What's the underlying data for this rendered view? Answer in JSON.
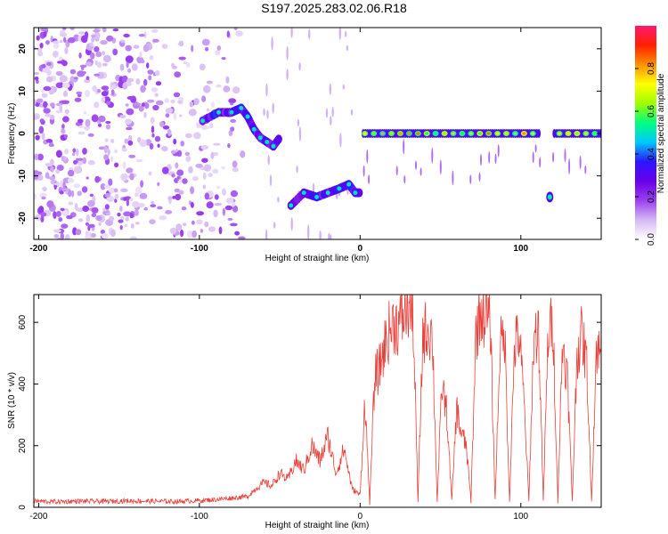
{
  "title": "S197.2025.283.02.06.R18",
  "colors": {
    "snr_line": "#e8403a",
    "axis": "#000000",
    "colormap": [
      "#ffffff",
      "#d6b8f5",
      "#9b40f0",
      "#6a00e8",
      "#2d16ff",
      "#00c8ff",
      "#00ff80",
      "#a0ff00",
      "#ffff00",
      "#ff9000",
      "#ff2000",
      "#ff1a70"
    ]
  },
  "chart_data": [
    {
      "type": "heatmap",
      "title": "S197.2025.283.02.06.R18",
      "xlabel": "Height of straight line (km)",
      "ylabel": "Frequency (Hz)",
      "xlim": [
        -203,
        150
      ],
      "ylim": [
        -25,
        25
      ],
      "x_ticks": [
        "-200",
        "-100",
        "0",
        "100"
      ],
      "x_tick_values": [
        -200,
        -100,
        0,
        100
      ],
      "y_ticks": [
        "-20",
        "-10",
        "0",
        "10",
        "20"
      ],
      "y_tick_values": [
        -20,
        -10,
        0,
        10,
        20
      ],
      "colorbar": {
        "label": "Normalized spectral amplitude",
        "range": [
          0,
          1
        ],
        "ticks": [
          "0.0",
          "0.2",
          "0.4",
          "0.6",
          "0.8"
        ],
        "tick_values": [
          0.0,
          0.2,
          0.4,
          0.6,
          0.8
        ]
      },
      "features": [
        {
          "x_range": [
            -203,
            -72
          ],
          "y_range": [
            -25,
            25
          ],
          "pattern": "broadband noise",
          "amplitude": 0.12
        },
        {
          "x": [
            -98,
            -88,
            -80,
            -74,
            -70,
            -66,
            -62,
            -58,
            -54,
            -50
          ],
          "y": [
            3,
            5,
            5,
            6,
            4,
            1,
            -1,
            -2,
            -3,
            -1
          ],
          "pattern": "track",
          "amplitude": 0.35
        },
        {
          "x": [
            -43,
            -35,
            -27,
            -20,
            -13,
            -7,
            -3,
            0
          ],
          "y": [
            -17,
            -14,
            -15,
            -14,
            -13,
            -12,
            -14,
            -14
          ],
          "pattern": "track",
          "amplitude": 0.35
        },
        {
          "x_range": [
            2,
            150
          ],
          "y": 0,
          "pattern": "steady line",
          "amplitude": 0.85
        },
        {
          "x": [
            118
          ],
          "y": [
            -15
          ],
          "pattern": "spot",
          "amplitude": 0.4
        }
      ]
    },
    {
      "type": "line",
      "xlabel": "Height of straight line (km)",
      "ylabel": "SNR (10 * v/v)",
      "xlim": [
        -203,
        150
      ],
      "ylim": [
        0,
        690
      ],
      "x_ticks": [
        "-200",
        "-100",
        "0",
        "100"
      ],
      "x_tick_values": [
        -200,
        -100,
        0,
        100
      ],
      "y_ticks": [
        "0",
        "200",
        "400",
        "600"
      ],
      "y_tick_values": [
        0,
        200,
        400,
        600
      ],
      "series": [
        {
          "x": [
            -203,
            -190,
            -175,
            -160,
            -145,
            -130,
            -115,
            -100,
            -90,
            -80,
            -70,
            -65,
            -60,
            -55,
            -50,
            -45,
            -40,
            -35,
            -30,
            -25,
            -20,
            -15,
            -10,
            -5,
            0,
            3,
            6,
            9,
            12,
            15,
            18,
            21,
            24,
            27,
            30,
            33,
            36,
            39,
            42,
            45,
            48,
            51,
            54,
            57,
            60,
            63,
            66,
            69,
            72,
            75,
            78,
            81,
            84,
            87,
            90,
            93,
            96,
            99,
            102,
            105,
            108,
            111,
            114,
            117,
            120,
            123,
            126,
            129,
            132,
            135,
            138,
            141,
            144,
            147,
            150
          ],
          "y": [
            20,
            18,
            20,
            19,
            21,
            20,
            19,
            22,
            25,
            30,
            35,
            60,
            80,
            70,
            110,
            90,
            150,
            120,
            200,
            150,
            230,
            110,
            190,
            60,
            40,
            350,
            15,
            420,
            450,
            520,
            570,
            600,
            590,
            620,
            650,
            610,
            20,
            560,
            580,
            560,
            20,
            400,
            300,
            20,
            320,
            240,
            200,
            20,
            560,
            640,
            620,
            600,
            20,
            520,
            560,
            20,
            520,
            560,
            340,
            20,
            540,
            580,
            20,
            560,
            600,
            20,
            540,
            420,
            20,
            500,
            560,
            460,
            20,
            520,
            490
          ]
        }
      ]
    }
  ]
}
